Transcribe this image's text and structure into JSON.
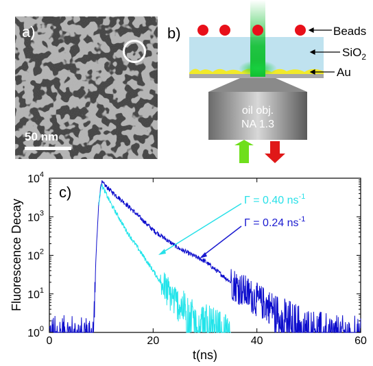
{
  "panel_a": {
    "label": "a)",
    "scale_bar_label": "50 nm"
  },
  "panel_b": {
    "label": "b)",
    "labels": {
      "beads": "Beads",
      "sio2_main": "SiO",
      "sio2_sub": "2",
      "au": "Au",
      "objective_line1": "oil obj.",
      "objective_line2": "NA 1.3"
    },
    "colors": {
      "beads": "#e8101a",
      "sio2": "#bfe2ef",
      "au": "#f2ea2a",
      "beam": "#10c030",
      "arrow_up": "#6fdf1c",
      "arrow_down": "#e01818"
    }
  },
  "panel_c": {
    "label": "c)",
    "ylabel": "Fluorescence Decay",
    "xlabel": "t(ns)",
    "annotations": [
      {
        "text_main": "Γ = 0.40 ns",
        "text_sup": "-1",
        "color": "#28e0e8"
      },
      {
        "text_main": "Γ = 0.24 ns",
        "text_sup": "-1",
        "color": "#1a1ad0"
      }
    ]
  },
  "chart_data": {
    "type": "line",
    "title": "",
    "xlabel": "t(ns)",
    "ylabel": "Fluorescence Decay",
    "xlim": [
      0,
      60
    ],
    "ylim": [
      1,
      10000
    ],
    "yscale": "log",
    "x_ticks": [
      "0",
      "20",
      "40",
      "60"
    ],
    "y_ticks": [
      {
        "base": "10",
        "exp": "0"
      },
      {
        "base": "10",
        "exp": "1"
      },
      {
        "base": "10",
        "exp": "2"
      },
      {
        "base": "10",
        "exp": "3"
      },
      {
        "base": "10",
        "exp": "4"
      }
    ],
    "series": [
      {
        "name": "Γ = 0.24 ns-1",
        "color": "#0c0ccc",
        "x": [
          0,
          8.5,
          9,
          9.5,
          10,
          12,
          15,
          20,
          25,
          30,
          35,
          40,
          45,
          50,
          55,
          60
        ],
        "y": [
          1,
          1,
          100,
          2000,
          8000,
          4500,
          2000,
          450,
          150,
          70,
          20,
          7,
          3,
          1.5,
          1,
          1
        ]
      },
      {
        "name": "Γ = 0.40 ns-1",
        "color": "#22e4ea",
        "x": [
          9.5,
          10,
          12,
          15,
          18,
          20,
          22,
          25,
          28,
          30,
          32,
          35
        ],
        "y": [
          2000,
          7000,
          2000,
          400,
          100,
          40,
          15,
          5,
          3,
          2,
          1.5,
          1
        ]
      }
    ]
  }
}
